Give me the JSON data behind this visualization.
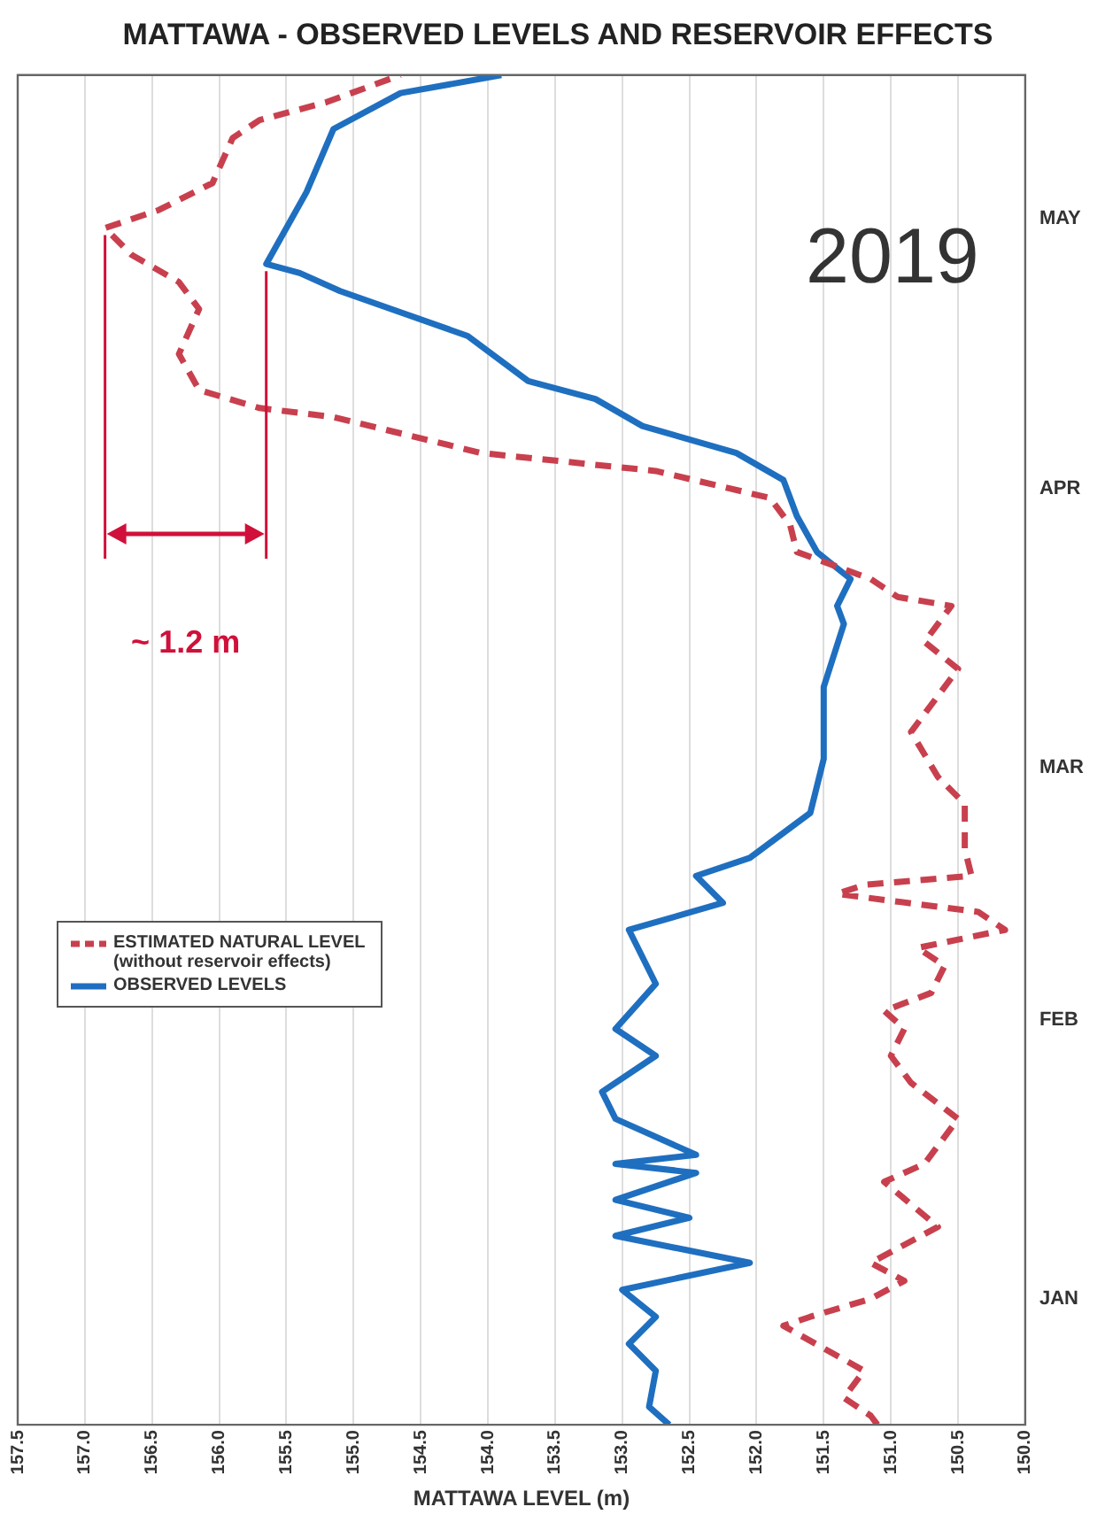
{
  "chart_data": {
    "type": "line",
    "orientation": "horizontal",
    "title": "MATTAWA - OBSERVED LEVELS AND RESERVOIR EFFECTS",
    "xlabel": "MATTAWA LEVEL (m)",
    "ylim": [
      "2019-01-01",
      "2019-05-31"
    ],
    "yticks": [
      {
        "value": "2019-01-15",
        "label": "JAN"
      },
      {
        "value": "2019-02-15",
        "label": "FEB"
      },
      {
        "value": "2019-03-15",
        "label": "MAR"
      },
      {
        "value": "2019-04-15",
        "label": "APR"
      },
      {
        "value": "2019-05-15",
        "label": "MAY"
      }
    ],
    "xlim": [
      157.5,
      150
    ],
    "xticks": [
      157.5,
      {
        "value": 157,
        "label": "157.0"
      },
      156.5,
      {
        "value": 156,
        "label": "156.0"
      },
      155.5,
      {
        "value": 155,
        "label": "155.0"
      },
      154.5,
      {
        "value": 154,
        "label": "154.0"
      },
      153.5,
      {
        "value": 153,
        "label": "153.0"
      },
      152.5,
      {
        "value": 152,
        "label": "152.0"
      },
      151.5,
      {
        "value": 151,
        "label": "151.0"
      },
      150.5,
      {
        "value": 150,
        "label": "150.0"
      }
    ],
    "grid": "x",
    "legend": "bottom left",
    "marker": "none",
    "series": [
      {
        "name": "ESTIMATED NATURAL LEVEL (without reservoir effects)",
        "color": "#c8404e",
        "line_style": "dashed",
        "x": [
          "2019-01-01",
          "2019-01-02",
          "2019-01-04",
          "2019-01-07",
          "2019-01-12",
          "2019-01-13",
          "2019-01-15",
          "2019-01-17",
          "2019-01-19",
          "2019-01-23",
          "2019-01-28",
          "2019-01-30",
          "2019-02-04",
          "2019-02-08",
          "2019-02-11",
          "2019-02-14",
          "2019-02-16",
          "2019-02-18",
          "2019-02-21",
          "2019-02-23",
          "2019-02-25",
          "2019-02-27",
          "2019-03-01",
          "2019-03-02",
          "2019-03-03",
          "2019-03-06",
          "2019-03-11",
          "2019-03-14",
          "2019-03-19",
          "2019-03-26",
          "2019-03-29",
          "2019-04-02",
          "2019-04-03",
          "2019-04-05",
          "2019-04-08",
          "2019-04-11",
          "2019-04-14",
          "2019-04-17",
          "2019-04-19",
          "2019-04-23",
          "2019-04-24",
          "2019-04-26",
          "2019-04-30",
          "2019-05-05",
          "2019-05-08",
          "2019-05-11",
          "2019-05-14",
          "2019-05-16",
          "2019-05-19",
          "2019-05-24",
          "2019-05-26",
          "2019-05-28",
          "2019-05-31"
        ],
        "values": [
          151.1,
          151.15,
          151.35,
          151.2,
          151.8,
          151.6,
          151.15,
          150.9,
          151.15,
          150.65,
          151.05,
          150.75,
          150.5,
          150.85,
          151.0,
          150.9,
          151.05,
          150.7,
          150.6,
          150.8,
          150.15,
          150.35,
          151.4,
          151.2,
          150.4,
          150.45,
          150.45,
          150.65,
          150.85,
          150.5,
          150.75,
          150.55,
          150.95,
          151.15,
          151.7,
          151.75,
          151.9,
          152.75,
          154.05,
          155.15,
          155.7,
          156.15,
          156.3,
          156.15,
          156.3,
          156.65,
          156.85,
          156.45,
          156.05,
          155.9,
          155.7,
          155.2,
          154.65
        ]
      },
      {
        "name": "OBSERVED LEVELS",
        "color": "#1f6fc0",
        "line_style": "solid",
        "x": [
          "2019-01-01",
          "2019-01-03",
          "2019-01-07",
          "2019-01-10",
          "2019-01-13",
          "2019-01-16",
          "2019-01-19",
          "2019-01-22",
          "2019-01-24",
          "2019-01-26",
          "2019-01-29",
          "2019-01-30",
          "2019-01-31",
          "2019-02-04",
          "2019-02-07",
          "2019-02-11",
          "2019-02-14",
          "2019-02-19",
          "2019-02-25",
          "2019-02-28",
          "2019-03-03",
          "2019-03-05",
          "2019-03-10",
          "2019-03-16",
          "2019-03-24",
          "2019-03-31",
          "2019-04-02",
          "2019-04-05",
          "2019-04-08",
          "2019-04-12",
          "2019-04-16",
          "2019-04-19",
          "2019-04-22",
          "2019-04-25",
          "2019-04-27",
          "2019-05-02",
          "2019-05-07",
          "2019-05-09",
          "2019-05-10",
          "2019-05-18",
          "2019-05-25",
          "2019-05-29",
          "2019-05-31"
        ],
        "values": [
          152.65,
          152.8,
          152.75,
          152.95,
          152.75,
          153.0,
          152.05,
          153.05,
          152.5,
          153.05,
          152.45,
          153.05,
          152.45,
          153.05,
          153.15,
          152.75,
          153.05,
          152.75,
          152.95,
          152.25,
          152.45,
          152.05,
          151.6,
          151.5,
          151.5,
          151.35,
          151.4,
          151.3,
          151.55,
          151.7,
          151.8,
          152.15,
          152.85,
          153.2,
          153.7,
          154.15,
          155.1,
          155.4,
          155.65,
          155.35,
          155.15,
          154.65,
          153.9
        ]
      }
    ],
    "annotations": [
      "~ 1.2 m",
      "2019"
    ]
  }
}
